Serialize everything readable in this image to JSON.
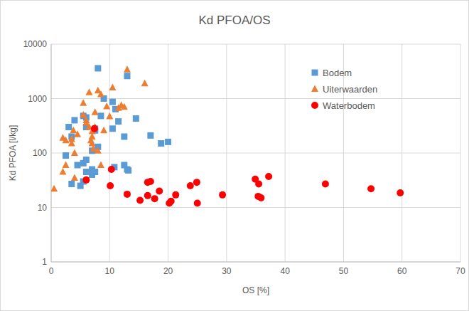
{
  "chart_data": {
    "type": "scatter",
    "title": "Kd PFOA/OS",
    "x_label": "OS [%]",
    "y_label": "Kd PFOA [l/kg]",
    "xlim": [
      0,
      70
    ],
    "xticks": [
      0,
      10,
      20,
      30,
      40,
      50,
      60,
      70
    ],
    "ylim": [
      1,
      10000
    ],
    "yticks": [
      1,
      10,
      100,
      1000,
      10000
    ],
    "log": "y",
    "grid": true,
    "legend": "top-right",
    "series": [
      {
        "name": "Bodem",
        "color": "#5b9bd5",
        "marker": "square",
        "x": [
          8,
          13,
          10.5,
          9,
          11,
          7.5,
          6,
          4,
          3,
          3.5,
          2.5,
          6,
          8.5,
          14.5,
          17,
          18.8,
          20,
          12.5,
          10.5,
          7,
          5.5,
          6,
          4.5,
          3.5,
          5,
          6,
          7,
          7.5,
          10.8,
          12.5,
          13,
          13.2,
          5.5,
          7,
          8,
          7.5,
          11.5,
          5.5
        ],
        "values": [
          3600,
          2600,
          870,
          1000,
          640,
          280,
          450,
          400,
          300,
          200,
          90,
          300,
          480,
          430,
          210,
          150,
          160,
          200,
          280,
          50,
          65,
          75,
          60,
          27,
          25,
          45,
          40,
          45,
          55,
          60,
          50,
          48,
          30,
          110,
          130,
          260,
          380,
          480
        ]
      },
      {
        "name": "Uiterwaarden",
        "color": "#ed7d31",
        "marker": "triangle",
        "x": [
          0.5,
          2,
          2.5,
          2,
          2.5,
          3.5,
          3.5,
          3.8,
          4,
          4.5,
          4,
          5.5,
          5.5,
          6,
          6,
          6.5,
          6.5,
          7,
          7,
          7,
          7.2,
          7.5,
          8,
          8,
          8.5,
          8.5,
          9,
          9.5,
          10,
          10.5,
          11.5,
          12,
          12.5,
          13,
          16,
          6.8,
          7.5
        ],
        "values": [
          22,
          190,
          170,
          45,
          60,
          180,
          150,
          260,
          100,
          220,
          35,
          830,
          500,
          400,
          360,
          1300,
          300,
          250,
          200,
          150,
          120,
          560,
          1400,
          110,
          1200,
          60,
          260,
          720,
          470,
          1600,
          670,
          750,
          700,
          3400,
          1900,
          170,
          300
        ]
      },
      {
        "name": "Waterbodem",
        "color": "#ff0000",
        "marker": "circle",
        "x": [
          7.4,
          10.3,
          6,
          10.1,
          13,
          15.2,
          16.5,
          17,
          16.5,
          17.7,
          18.5,
          20.2,
          20.5,
          21.3,
          23.8,
          24.9,
          25,
          29.3,
          34.9,
          35.5,
          35.4,
          35.9,
          37.2,
          46.9,
          54.7,
          59.7
        ],
        "values": [
          280,
          50,
          32,
          25,
          17.5,
          13.5,
          29,
          30,
          16.5,
          14.5,
          20,
          12,
          13,
          17,
          25,
          29,
          12,
          17,
          33,
          27,
          16,
          15,
          37,
          27,
          22,
          18.5
        ]
      }
    ]
  }
}
